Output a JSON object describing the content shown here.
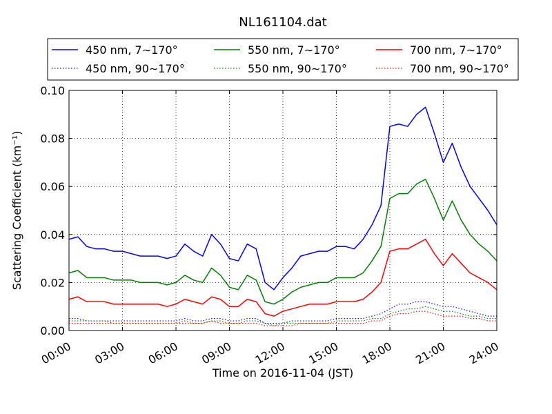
{
  "chart_data": {
    "type": "line",
    "title": "NL161104.dat",
    "xlabel": "Time on 2016-11-04 (JST)",
    "ylabel": "Scattering Coefficient (km⁻¹)",
    "xlim": [
      0,
      24
    ],
    "ylim": [
      0,
      0.1
    ],
    "x_ticks": [
      0,
      3,
      6,
      9,
      12,
      15,
      18,
      21,
      24
    ],
    "x_tick_labels": [
      "00:00",
      "03:00",
      "06:00",
      "09:00",
      "12:00",
      "15:00",
      "18:00",
      "21:00",
      "24:00"
    ],
    "y_ticks": [
      0,
      0.02,
      0.04,
      0.06,
      0.08,
      0.1
    ],
    "y_tick_labels": [
      "0.00",
      "0.02",
      "0.04",
      "0.06",
      "0.08",
      "0.10"
    ],
    "grid": true,
    "legend_position": "top (above plot), 3 columns",
    "x_hours": [
      0,
      0.5,
      1,
      1.5,
      2,
      2.5,
      3,
      3.5,
      4,
      4.5,
      5,
      5.5,
      6,
      6.5,
      7,
      7.5,
      8,
      8.5,
      9,
      9.5,
      10,
      10.5,
      11,
      11.5,
      12,
      12.5,
      13,
      13.5,
      14,
      14.5,
      15,
      15.5,
      16,
      16.5,
      17,
      17.5,
      18,
      18.5,
      19,
      19.5,
      20,
      20.5,
      21,
      21.5,
      22,
      22.5,
      23,
      23.5,
      24
    ],
    "series": [
      {
        "name": "450 nm, 7∼170°",
        "color": "#0000ff",
        "style": "solid",
        "values": [
          0.038,
          0.039,
          0.035,
          0.034,
          0.034,
          0.033,
          0.033,
          0.032,
          0.031,
          0.031,
          0.031,
          0.03,
          0.031,
          0.036,
          0.033,
          0.031,
          0.04,
          0.036,
          0.03,
          0.029,
          0.036,
          0.034,
          0.02,
          0.017,
          0.022,
          0.026,
          0.031,
          0.032,
          0.033,
          0.033,
          0.035,
          0.035,
          0.034,
          0.038,
          0.044,
          0.052,
          0.085,
          0.086,
          0.085,
          0.09,
          0.093,
          0.082,
          0.07,
          0.078,
          0.068,
          0.06,
          0.055,
          0.05,
          0.044
        ]
      },
      {
        "name": "450 nm, 90∼170°",
        "color": "#0000ff",
        "style": "dotted",
        "values": [
          0.005,
          0.005,
          0.004,
          0.004,
          0.004,
          0.004,
          0.004,
          0.004,
          0.004,
          0.004,
          0.004,
          0.004,
          0.004,
          0.005,
          0.004,
          0.004,
          0.005,
          0.005,
          0.004,
          0.004,
          0.005,
          0.005,
          0.003,
          0.003,
          0.003,
          0.004,
          0.004,
          0.004,
          0.004,
          0.004,
          0.005,
          0.005,
          0.005,
          0.005,
          0.006,
          0.007,
          0.009,
          0.011,
          0.011,
          0.012,
          0.012,
          0.011,
          0.01,
          0.01,
          0.009,
          0.008,
          0.007,
          0.006,
          0.006
        ]
      },
      {
        "name": "550 nm, 7∼170°",
        "color": "#008000",
        "style": "solid",
        "values": [
          0.024,
          0.025,
          0.022,
          0.022,
          0.022,
          0.021,
          0.021,
          0.021,
          0.02,
          0.02,
          0.02,
          0.019,
          0.02,
          0.023,
          0.021,
          0.02,
          0.026,
          0.023,
          0.018,
          0.017,
          0.023,
          0.021,
          0.012,
          0.011,
          0.013,
          0.016,
          0.018,
          0.019,
          0.02,
          0.02,
          0.022,
          0.022,
          0.022,
          0.024,
          0.029,
          0.035,
          0.055,
          0.057,
          0.057,
          0.061,
          0.063,
          0.055,
          0.046,
          0.054,
          0.046,
          0.04,
          0.036,
          0.033,
          0.029
        ]
      },
      {
        "name": "550 nm, 90∼170°",
        "color": "#008000",
        "style": "dotted",
        "values": [
          0.004,
          0.004,
          0.004,
          0.004,
          0.004,
          0.003,
          0.003,
          0.003,
          0.003,
          0.003,
          0.003,
          0.003,
          0.003,
          0.004,
          0.003,
          0.003,
          0.004,
          0.004,
          0.003,
          0.003,
          0.004,
          0.004,
          0.003,
          0.002,
          0.003,
          0.003,
          0.003,
          0.003,
          0.003,
          0.003,
          0.004,
          0.004,
          0.004,
          0.004,
          0.005,
          0.005,
          0.007,
          0.008,
          0.009,
          0.009,
          0.01,
          0.009,
          0.008,
          0.008,
          0.007,
          0.006,
          0.006,
          0.005,
          0.005
        ]
      },
      {
        "name": "700 nm, 7∼170°",
        "color": "#ff0000",
        "style": "solid",
        "values": [
          0.013,
          0.014,
          0.012,
          0.012,
          0.012,
          0.011,
          0.011,
          0.011,
          0.011,
          0.011,
          0.011,
          0.01,
          0.011,
          0.013,
          0.012,
          0.011,
          0.014,
          0.013,
          0.01,
          0.01,
          0.013,
          0.012,
          0.007,
          0.006,
          0.008,
          0.009,
          0.01,
          0.011,
          0.011,
          0.011,
          0.012,
          0.012,
          0.012,
          0.013,
          0.016,
          0.02,
          0.033,
          0.034,
          0.034,
          0.036,
          0.038,
          0.032,
          0.027,
          0.032,
          0.028,
          0.024,
          0.022,
          0.02,
          0.017
        ]
      },
      {
        "name": "700 nm, 90∼170°",
        "color": "#ff0000",
        "style": "dotted",
        "values": [
          0.003,
          0.003,
          0.003,
          0.003,
          0.003,
          0.003,
          0.003,
          0.003,
          0.003,
          0.003,
          0.003,
          0.003,
          0.003,
          0.003,
          0.003,
          0.003,
          0.004,
          0.003,
          0.003,
          0.003,
          0.003,
          0.003,
          0.002,
          0.002,
          0.002,
          0.002,
          0.003,
          0.003,
          0.003,
          0.003,
          0.003,
          0.003,
          0.003,
          0.003,
          0.004,
          0.004,
          0.006,
          0.007,
          0.007,
          0.008,
          0.008,
          0.007,
          0.006,
          0.006,
          0.006,
          0.005,
          0.005,
          0.004,
          0.004
        ]
      }
    ]
  }
}
